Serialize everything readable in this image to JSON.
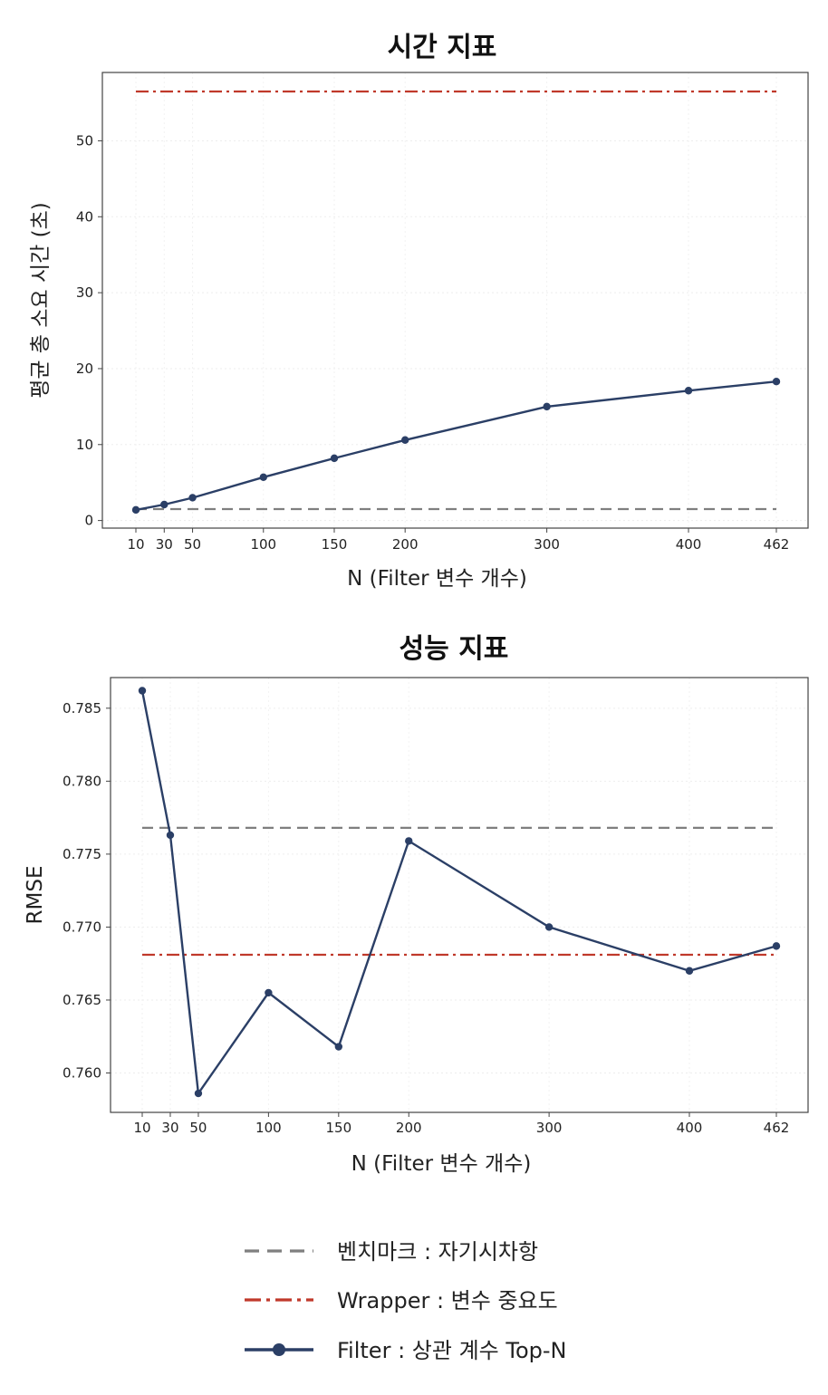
{
  "chart_data": [
    {
      "type": "line",
      "title": "시간 지표",
      "xlabel": "N (Filter 변수 개수)",
      "ylabel": "평균 총 소요 시간 (초)",
      "x": [
        10,
        30,
        50,
        100,
        150,
        200,
        300,
        400,
        462
      ],
      "xticks": [
        10,
        30,
        50,
        100,
        150,
        200,
        300,
        400,
        462
      ],
      "yticks": [
        0,
        10,
        20,
        30,
        40,
        50
      ],
      "ylim": [
        -1,
        59
      ],
      "grid": true,
      "series": [
        {
          "name": "Filter : 상관 계수 Top-N",
          "style": "solid-marker",
          "color": "#2b3f66",
          "values": [
            1.4,
            2.1,
            3.0,
            5.7,
            8.2,
            10.6,
            15.0,
            17.1,
            18.3
          ]
        },
        {
          "name": "Wrapper : 변수 중요도",
          "style": "dashdot",
          "color": "#c0392b",
          "values": [
            56.5,
            56.5,
            56.5,
            56.5,
            56.5,
            56.5,
            56.5,
            56.5,
            56.5
          ]
        },
        {
          "name": "벤치마크 : 자기시차항",
          "style": "dashed",
          "color": "#7f7f7f",
          "values": [
            1.5,
            1.5,
            1.5,
            1.5,
            1.5,
            1.5,
            1.5,
            1.5,
            1.5
          ]
        }
      ]
    },
    {
      "type": "line",
      "title": "성능 지표",
      "xlabel": "N (Filter 변수 개수)",
      "ylabel": "RMSE",
      "x": [
        10,
        30,
        50,
        100,
        150,
        200,
        300,
        400,
        462
      ],
      "xticks": [
        10,
        30,
        50,
        100,
        150,
        200,
        300,
        400,
        462
      ],
      "yticks": [
        0.76,
        0.765,
        0.77,
        0.775,
        0.78,
        0.785
      ],
      "ylim": [
        0.7573,
        0.7871
      ],
      "grid": true,
      "series": [
        {
          "name": "Filter : 상관 계수 Top-N",
          "style": "solid-marker",
          "color": "#2b3f66",
          "values": [
            0.7862,
            0.7763,
            0.7586,
            0.7655,
            0.7618,
            0.7759,
            0.77,
            0.767,
            0.7687
          ]
        },
        {
          "name": "Wrapper : 변수 중요도",
          "style": "dashdot",
          "color": "#c0392b",
          "values": [
            0.7681,
            0.7681,
            0.7681,
            0.7681,
            0.7681,
            0.7681,
            0.7681,
            0.7681,
            0.7681
          ]
        },
        {
          "name": "벤치마크 : 자기시차항",
          "style": "dashed",
          "color": "#7f7f7f",
          "values": [
            0.7768,
            0.7768,
            0.7768,
            0.7768,
            0.7768,
            0.7768,
            0.7768,
            0.7768,
            0.7768
          ]
        }
      ]
    }
  ],
  "legend": {
    "placement": "bottom-center",
    "items": [
      {
        "label": "벤치마크 : 자기시차항",
        "style": "dashed",
        "color": "#7f7f7f"
      },
      {
        "label": "Wrapper : 변수 중요도",
        "style": "dashdot",
        "color": "#c0392b"
      },
      {
        "label": "Filter : 상관 계수 Top-N",
        "style": "solid-marker",
        "color": "#2b3f66"
      }
    ]
  }
}
